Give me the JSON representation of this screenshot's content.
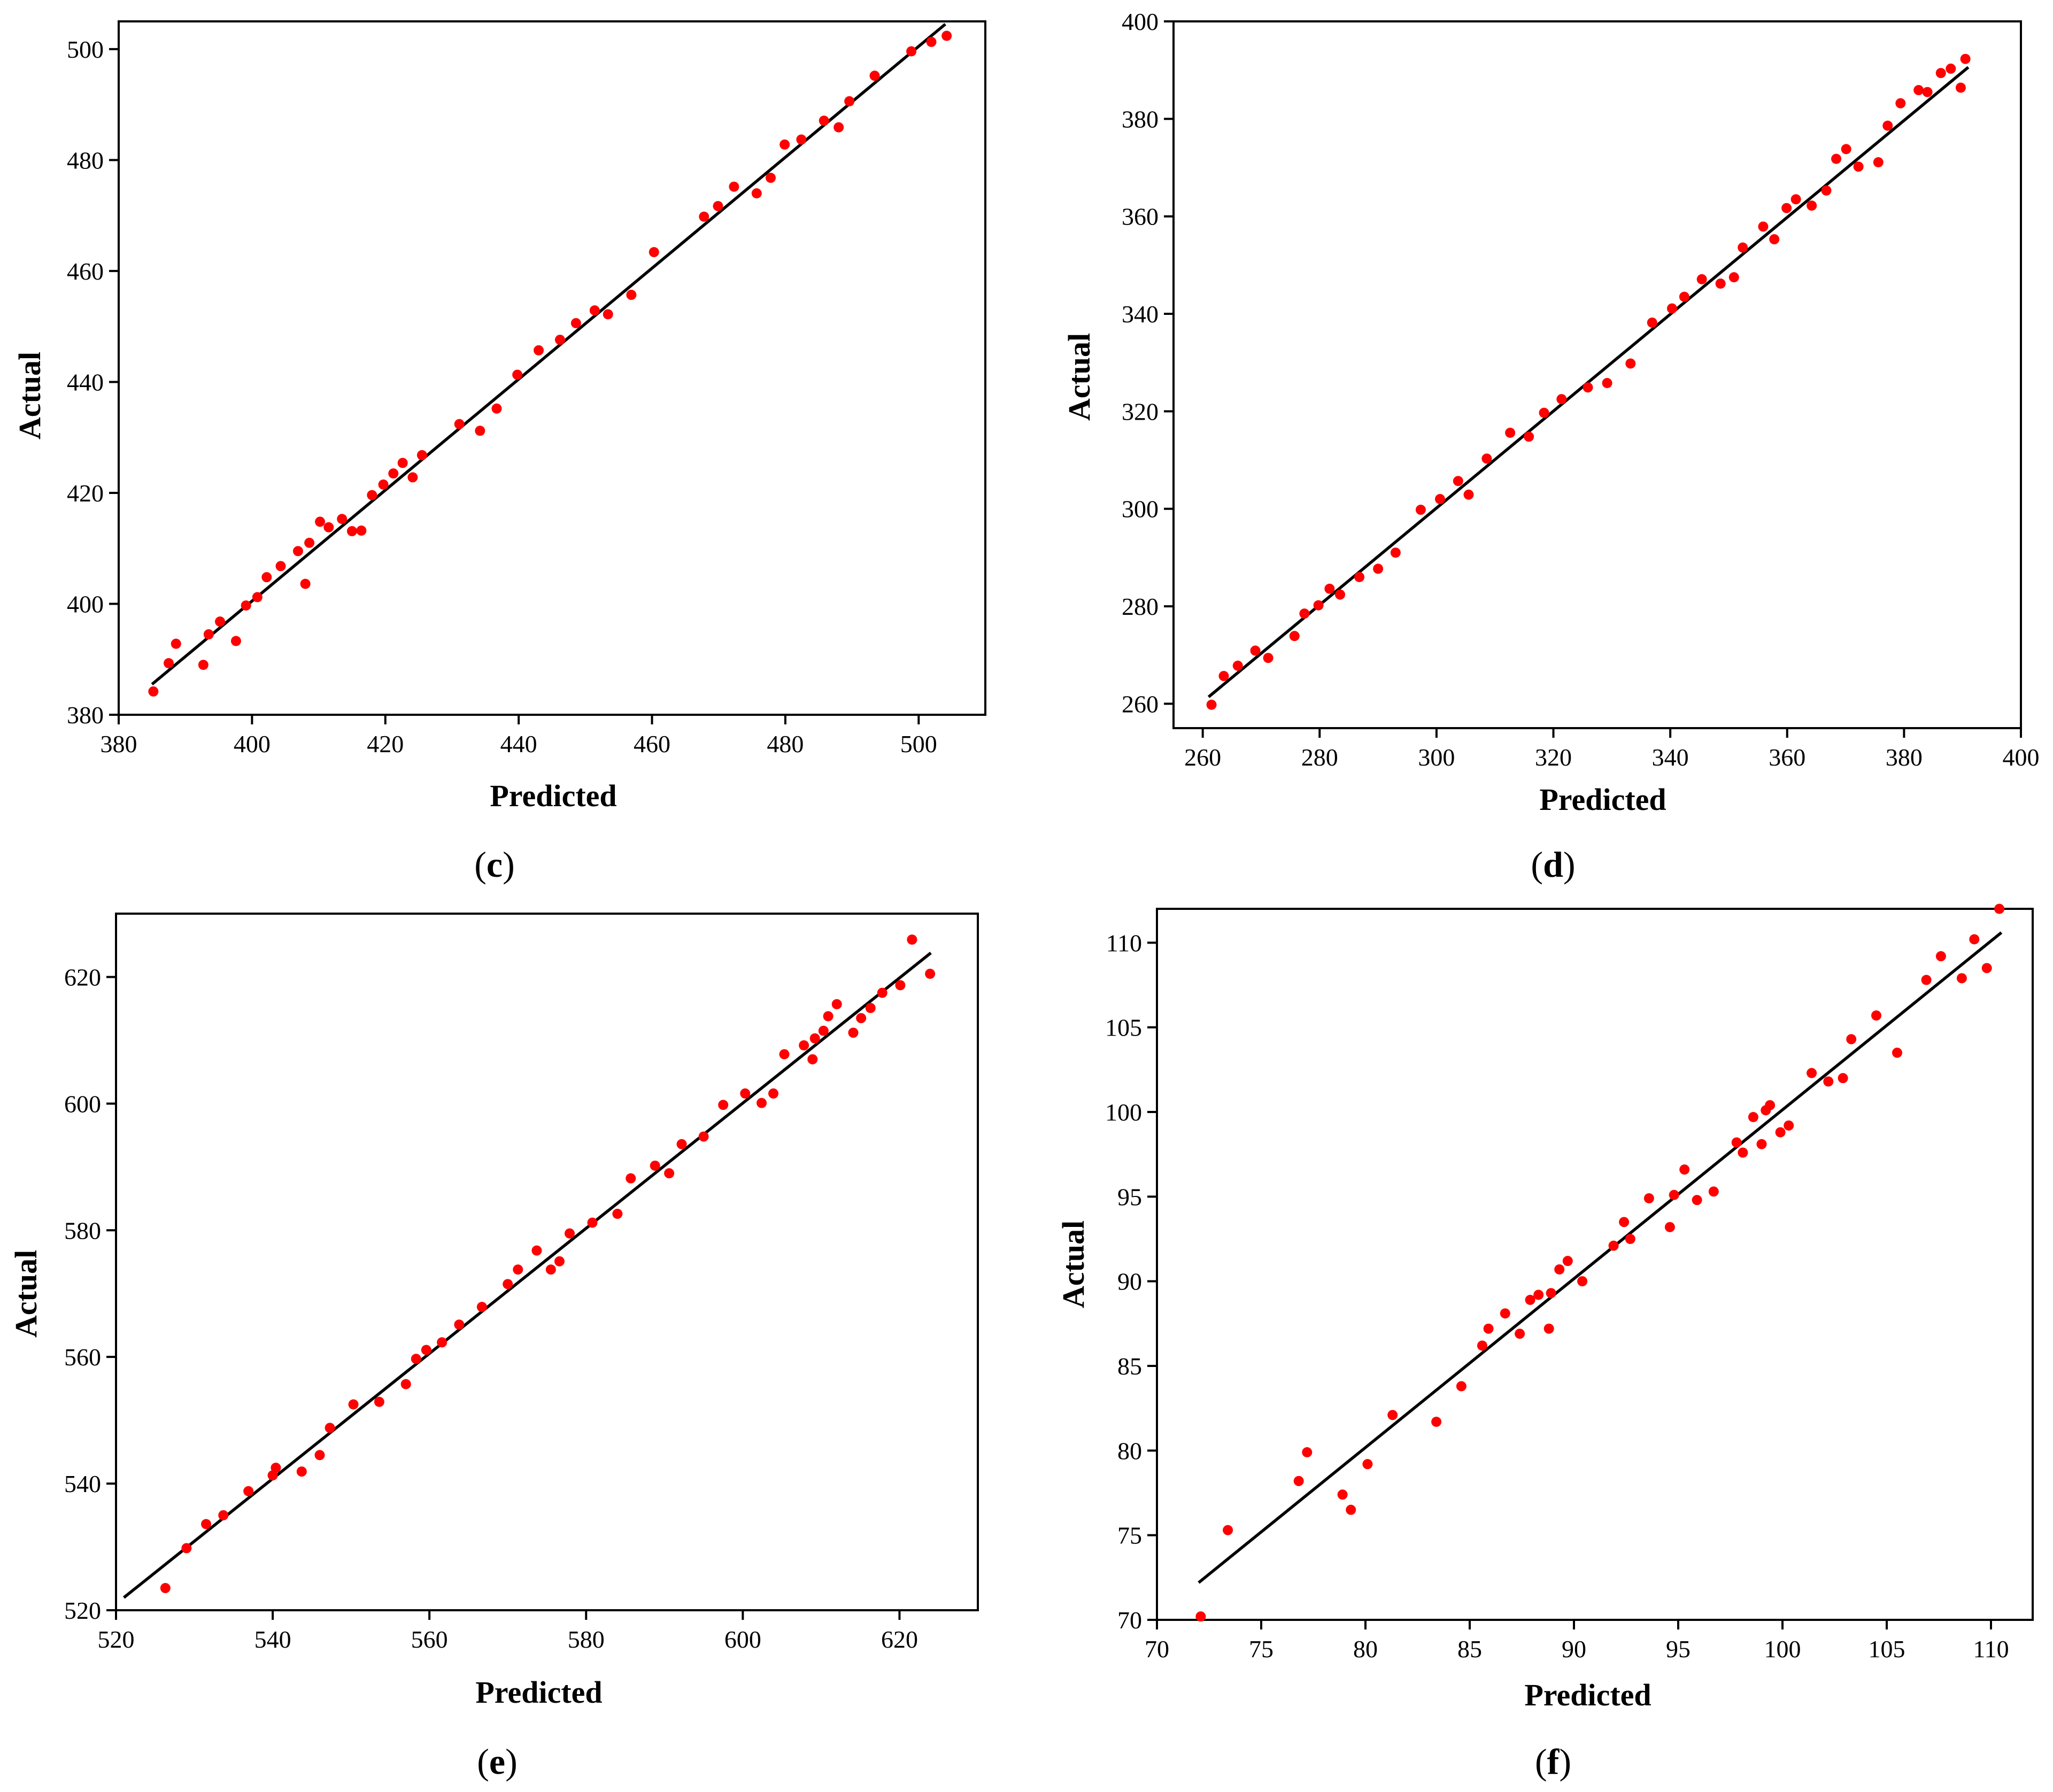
{
  "figure": {
    "colors": {
      "point": "#ff0000",
      "fit_line": "#000000",
      "axes": "#000000",
      "background": "#ffffff"
    }
  },
  "chart_data": [
    {
      "panel": "c",
      "caption": {
        "open": "(",
        "letter": "c",
        "close": ")"
      },
      "type": "scatter",
      "xlabel": "Predicted",
      "ylabel": "Actual",
      "xlim": [
        380,
        510
      ],
      "ylim": [
        380,
        505
      ],
      "xticks": [
        380,
        400,
        420,
        440,
        460,
        480,
        500
      ],
      "yticks": [
        380,
        400,
        420,
        440,
        460,
        480,
        500
      ],
      "fit_line": {
        "x": [
          385,
          504
        ],
        "y": [
          385.5,
          504.5
        ]
      },
      "points": [
        [
          385.2,
          384.2
        ],
        [
          387.5,
          389.3
        ],
        [
          388.6,
          392.8
        ],
        [
          392.7,
          389.0
        ],
        [
          393.5,
          394.5
        ],
        [
          395.2,
          396.8
        ],
        [
          397.6,
          393.3
        ],
        [
          399.1,
          399.7
        ],
        [
          400.8,
          401.2
        ],
        [
          402.2,
          404.8
        ],
        [
          404.3,
          406.8
        ],
        [
          406.9,
          409.5
        ],
        [
          408.0,
          403.6
        ],
        [
          408.6,
          411.0
        ],
        [
          410.2,
          414.8
        ],
        [
          411.5,
          413.8
        ],
        [
          413.5,
          415.3
        ],
        [
          415.0,
          413.1
        ],
        [
          416.4,
          413.2
        ],
        [
          418.0,
          419.6
        ],
        [
          419.7,
          421.5
        ],
        [
          421.2,
          423.5
        ],
        [
          422.6,
          425.4
        ],
        [
          424.1,
          422.8
        ],
        [
          425.5,
          426.8
        ],
        [
          431.1,
          432.4
        ],
        [
          434.2,
          431.2
        ],
        [
          436.7,
          435.2
        ],
        [
          439.8,
          441.3
        ],
        [
          443.0,
          445.7
        ],
        [
          446.2,
          447.6
        ],
        [
          448.6,
          450.6
        ],
        [
          451.4,
          452.9
        ],
        [
          453.4,
          452.2
        ],
        [
          456.9,
          455.7
        ],
        [
          460.3,
          463.4
        ],
        [
          467.8,
          469.8
        ],
        [
          469.9,
          471.7
        ],
        [
          472.3,
          475.2
        ],
        [
          475.7,
          474.0
        ],
        [
          477.8,
          476.8
        ],
        [
          479.9,
          482.8
        ],
        [
          482.4,
          483.7
        ],
        [
          485.8,
          487.1
        ],
        [
          488.0,
          485.9
        ],
        [
          489.6,
          490.6
        ],
        [
          493.4,
          495.2
        ],
        [
          498.9,
          499.6
        ],
        [
          501.9,
          501.3
        ],
        [
          504.2,
          502.4
        ]
      ]
    },
    {
      "panel": "d",
      "caption": {
        "open": "(",
        "letter": "d",
        "close": ")"
      },
      "type": "scatter",
      "xlabel": "Predicted",
      "ylabel": "Actual",
      "xlim": [
        255,
        400
      ],
      "ylim": [
        255,
        400
      ],
      "xticks": [
        260,
        280,
        300,
        320,
        340,
        360,
        380,
        400
      ],
      "yticks": [
        260,
        280,
        300,
        320,
        340,
        360,
        380,
        400
      ],
      "fit_line": {
        "x": [
          261,
          391
        ],
        "y": [
          261.4,
          390.6
        ]
      },
      "points": [
        [
          261.5,
          259.8
        ],
        [
          263.6,
          265.7
        ],
        [
          266.0,
          267.8
        ],
        [
          269.0,
          270.9
        ],
        [
          271.2,
          269.4
        ],
        [
          275.7,
          273.9
        ],
        [
          277.4,
          278.5
        ],
        [
          279.8,
          280.2
        ],
        [
          281.7,
          283.6
        ],
        [
          283.5,
          282.4
        ],
        [
          286.8,
          286.0
        ],
        [
          290.0,
          287.7
        ],
        [
          293.0,
          291.0
        ],
        [
          297.3,
          299.8
        ],
        [
          300.6,
          302.0
        ],
        [
          303.7,
          305.7
        ],
        [
          305.5,
          302.9
        ],
        [
          308.6,
          310.3
        ],
        [
          312.6,
          315.6
        ],
        [
          315.8,
          314.8
        ],
        [
          318.4,
          319.7
        ],
        [
          321.4,
          322.5
        ],
        [
          325.9,
          324.9
        ],
        [
          329.2,
          325.8
        ],
        [
          333.2,
          329.8
        ],
        [
          336.9,
          338.2
        ],
        [
          340.3,
          341.1
        ],
        [
          342.4,
          343.5
        ],
        [
          345.4,
          347.1
        ],
        [
          348.6,
          346.2
        ],
        [
          350.9,
          347.5
        ],
        [
          352.4,
          353.6
        ],
        [
          355.9,
          357.9
        ],
        [
          357.8,
          355.3
        ],
        [
          359.9,
          361.7
        ],
        [
          361.5,
          363.5
        ],
        [
          364.2,
          362.2
        ],
        [
          366.7,
          365.3
        ],
        [
          368.4,
          371.8
        ],
        [
          370.1,
          373.8
        ],
        [
          372.2,
          370.2
        ],
        [
          375.6,
          371.1
        ],
        [
          377.2,
          378.6
        ],
        [
          379.4,
          383.2
        ],
        [
          382.5,
          385.9
        ],
        [
          384.0,
          385.5
        ],
        [
          386.3,
          389.4
        ],
        [
          388.0,
          390.3
        ],
        [
          389.7,
          386.4
        ],
        [
          390.5,
          392.3
        ]
      ]
    },
    {
      "panel": "e",
      "caption": {
        "open": "(",
        "letter": "e",
        "close": ")"
      },
      "type": "scatter",
      "xlabel": "Predicted",
      "ylabel": "Actual",
      "xlim": [
        520,
        630
      ],
      "ylim": [
        520,
        630
      ],
      "xticks": [
        520,
        540,
        560,
        580,
        600,
        620
      ],
      "yticks": [
        520,
        540,
        560,
        580,
        600,
        620
      ],
      "fit_line": {
        "x": [
          521,
          624
        ],
        "y": [
          522,
          623.8
        ]
      },
      "points": [
        [
          526.3,
          523.5
        ],
        [
          529.0,
          529.8
        ],
        [
          531.5,
          533.6
        ],
        [
          533.7,
          535.0
        ],
        [
          536.9,
          538.8
        ],
        [
          540.0,
          541.3
        ],
        [
          540.4,
          542.5
        ],
        [
          543.7,
          541.9
        ],
        [
          546.0,
          544.5
        ],
        [
          547.3,
          548.8
        ],
        [
          550.3,
          552.5
        ],
        [
          553.6,
          552.9
        ],
        [
          557.0,
          555.7
        ],
        [
          558.3,
          559.7
        ],
        [
          559.6,
          561.1
        ],
        [
          561.6,
          562.3
        ],
        [
          563.8,
          565.1
        ],
        [
          566.7,
          567.9
        ],
        [
          570.0,
          571.5
        ],
        [
          571.3,
          573.8
        ],
        [
          573.7,
          576.8
        ],
        [
          575.5,
          573.8
        ],
        [
          576.6,
          575.1
        ],
        [
          577.9,
          579.5
        ],
        [
          580.8,
          581.2
        ],
        [
          584.0,
          582.6
        ],
        [
          585.7,
          588.2
        ],
        [
          588.8,
          590.2
        ],
        [
          590.6,
          589.0
        ],
        [
          592.2,
          593.6
        ],
        [
          595.0,
          594.8
        ],
        [
          597.5,
          599.8
        ],
        [
          600.3,
          601.6
        ],
        [
          602.4,
          600.1
        ],
        [
          603.9,
          601.6
        ],
        [
          605.3,
          607.8
        ],
        [
          607.8,
          609.2
        ],
        [
          608.9,
          607.0
        ],
        [
          609.2,
          610.3
        ],
        [
          610.3,
          611.5
        ],
        [
          610.9,
          613.8
        ],
        [
          612.0,
          615.7
        ],
        [
          614.1,
          611.2
        ],
        [
          615.1,
          613.5
        ],
        [
          616.3,
          615.1
        ],
        [
          617.8,
          617.5
        ],
        [
          620.1,
          618.7
        ],
        [
          621.6,
          625.9
        ],
        [
          623.9,
          620.5
        ]
      ]
    },
    {
      "panel": "f",
      "caption": {
        "open": "(",
        "letter": "f",
        "close": ")"
      },
      "type": "scatter",
      "xlabel": "Predicted",
      "ylabel": "Actual",
      "xlim": [
        70,
        112
      ],
      "ylim": [
        70,
        112
      ],
      "xticks": [
        70,
        75,
        80,
        85,
        90,
        95,
        100,
        105,
        110
      ],
      "yticks": [
        70,
        75,
        80,
        85,
        90,
        95,
        100,
        105,
        110
      ],
      "fit_line": {
        "x": [
          72,
          110.5
        ],
        "y": [
          72.2,
          110.6
        ]
      },
      "points": [
        [
          72.1,
          70.2
        ],
        [
          73.4,
          75.3
        ],
        [
          76.8,
          78.2
        ],
        [
          77.2,
          79.9
        ],
        [
          78.9,
          77.4
        ],
        [
          79.3,
          76.5
        ],
        [
          80.1,
          79.2
        ],
        [
          81.3,
          82.1
        ],
        [
          83.4,
          81.7
        ],
        [
          84.6,
          83.8
        ],
        [
          85.6,
          86.2
        ],
        [
          85.9,
          87.2
        ],
        [
          86.7,
          88.1
        ],
        [
          87.4,
          86.9
        ],
        [
          87.9,
          88.9
        ],
        [
          88.3,
          89.2
        ],
        [
          88.8,
          87.2
        ],
        [
          88.9,
          89.3
        ],
        [
          89.3,
          90.7
        ],
        [
          89.7,
          91.2
        ],
        [
          90.4,
          90.0
        ],
        [
          91.9,
          92.1
        ],
        [
          92.4,
          93.5
        ],
        [
          92.7,
          92.5
        ],
        [
          93.6,
          94.9
        ],
        [
          94.6,
          93.2
        ],
        [
          94.8,
          95.1
        ],
        [
          95.3,
          96.6
        ],
        [
          95.9,
          94.8
        ],
        [
          96.7,
          95.3
        ],
        [
          97.8,
          98.2
        ],
        [
          98.1,
          97.6
        ],
        [
          98.6,
          99.7
        ],
        [
          99.0,
          98.1
        ],
        [
          99.2,
          100.1
        ],
        [
          99.4,
          100.4
        ],
        [
          99.9,
          98.8
        ],
        [
          100.3,
          99.2
        ],
        [
          101.4,
          102.3
        ],
        [
          102.2,
          101.8
        ],
        [
          102.9,
          102.0
        ],
        [
          103.3,
          104.3
        ],
        [
          104.5,
          105.7
        ],
        [
          105.5,
          103.5
        ],
        [
          106.9,
          107.8
        ],
        [
          107.6,
          109.2
        ],
        [
          108.6,
          107.9
        ],
        [
          109.2,
          110.2
        ],
        [
          109.8,
          108.5
        ],
        [
          110.4,
          112.0
        ]
      ]
    }
  ]
}
